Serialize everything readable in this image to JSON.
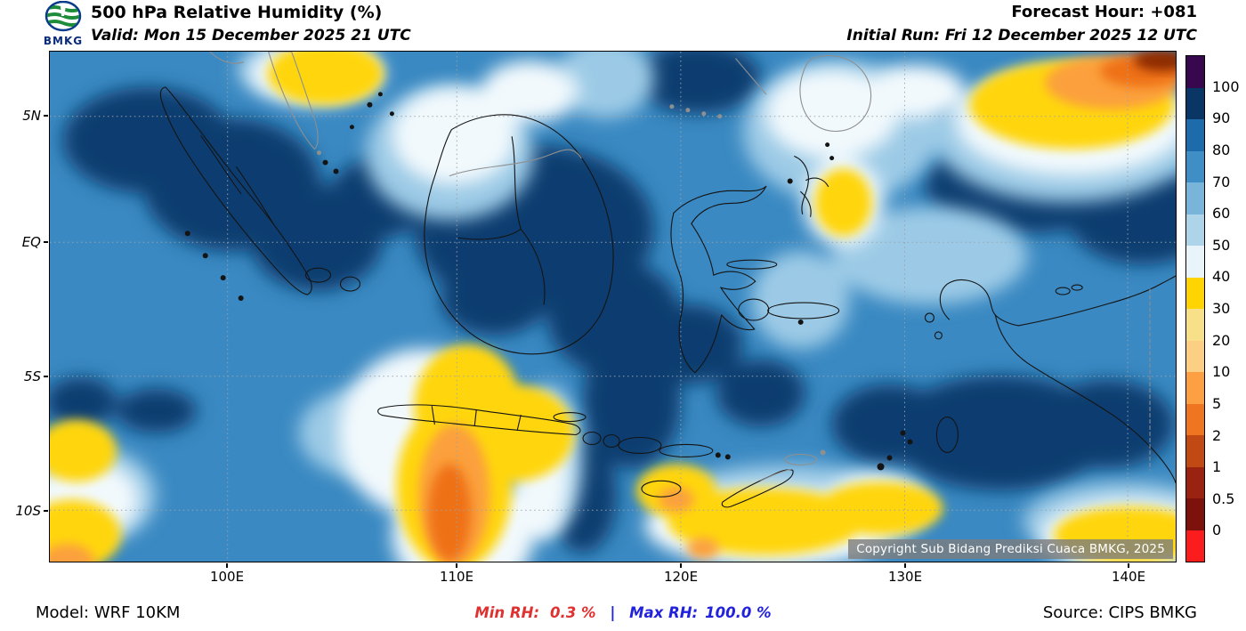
{
  "header": {
    "logo_text": "BMKG",
    "title": "500 hPa Relative Humidity (%)",
    "valid_label": "Valid: Mon 15 December 2025 21 UTC",
    "forecast_hour_label": "Forecast Hour: +081",
    "initial_run_label": "Initial Run: Fri 12 December 2025 12 UTC"
  },
  "map": {
    "y_ticks": [
      "5N",
      "EQ",
      "5S",
      "10S"
    ],
    "x_ticks": [
      "100E",
      "110E",
      "120E",
      "130E",
      "140E"
    ],
    "copyright": "Copyright Sub Bidang Prediksi Cuaca BMKG, 2025"
  },
  "colorbar": {
    "labels": [
      "100",
      "90",
      "80",
      "70",
      "60",
      "50",
      "40",
      "30",
      "20",
      "10",
      "5",
      "2",
      "1",
      "0.5",
      "0"
    ],
    "colors": [
      "#38084f",
      "#0a3666",
      "#1e6bab",
      "#3f8ec6",
      "#79b5da",
      "#aed4ea",
      "#e9f4fa",
      "#ffd400",
      "#f8e088",
      "#fccf84",
      "#fd9f43",
      "#f07520",
      "#c14a14",
      "#992310",
      "#7c120b",
      "#fb1d1d"
    ]
  },
  "footer": {
    "model_label": "Model: WRF 10KM",
    "min_label": "Min RH:",
    "min_value": "0.3 %",
    "separator": "|",
    "max_label": "Max RH:",
    "max_value": "100.0 %",
    "min_color": "#e03131",
    "max_color": "#2222dd",
    "separator_color": "#2222dd",
    "source_label": "Source: CIPS BMKG"
  },
  "chart_data": {
    "type": "heatmap",
    "title": "500 hPa Relative Humidity (%)",
    "variable": "Relative Humidity",
    "pressure_level": "500 hPa",
    "units": "%",
    "valid_time": "Mon 15 December 2025 21 UTC",
    "initial_run": "Fri 12 December 2025 12 UTC",
    "forecast_hour": "+081",
    "model": "WRF 10KM",
    "source": "CIPS BMKG",
    "min_value": 0.3,
    "max_value": 100.0,
    "x_ticks": [
      "100E",
      "110E",
      "120E",
      "130E",
      "140E"
    ],
    "y_ticks": [
      "5N",
      "EQ",
      "5S",
      "10S"
    ],
    "colorbar_levels": [
      0,
      0.5,
      1,
      2,
      5,
      10,
      20,
      30,
      40,
      50,
      60,
      70,
      80,
      90,
      100
    ],
    "legend_position": "right",
    "grid": true,
    "region": "Indonesia",
    "notable_features": [
      "High RH (80-100%) over most of Sumatra, Borneo, central archipelago and western Pacific areas",
      "Dry tongue (RH < 10%) over Java with orange core",
      "Dry patch (RH < 5%) in far northeast corner of domain",
      "Dry bands (RH 20-40%) along southern ocean and top-left/top-right of domain"
    ]
  }
}
